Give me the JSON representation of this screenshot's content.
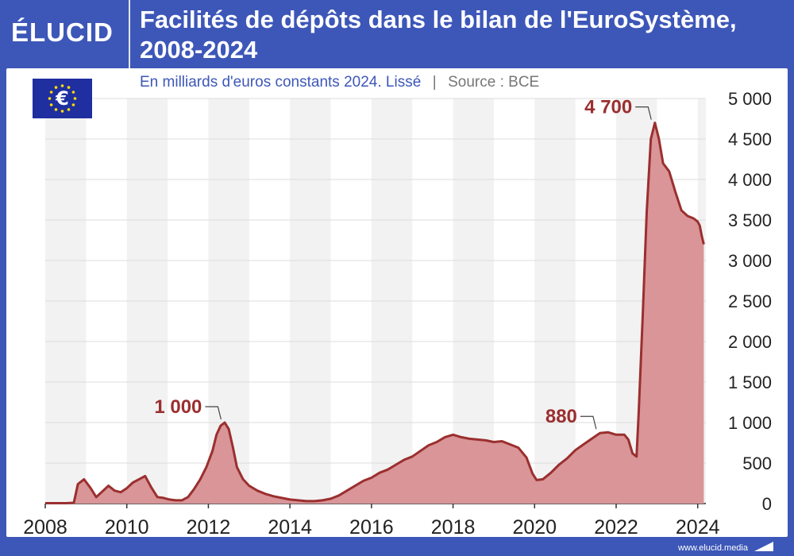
{
  "header": {
    "logo": "ÉLUCID",
    "title_line1": "Facilités de dépôts dans le bilan de l'EuroSystème,",
    "title_line2": "2008-2024"
  },
  "subtitle": {
    "unit": "En milliards d'euros constants 2024. Lissé",
    "separator": "|",
    "source": "Source : BCE"
  },
  "footer": {
    "url": "www.elucid.media"
  },
  "icons": {
    "flag": "eu-flag-euro-icon",
    "brand_mark": "elucid-mark-icon"
  },
  "colors": {
    "brand": "#3d57b8",
    "line": "#9b2f2f",
    "fill": "#d99597",
    "band": "#f2f2f2",
    "eu_blue": "#1f2fa0",
    "eu_gold": "#ffdd00"
  },
  "chart_data": {
    "type": "area",
    "title": "Facilités de dépôts dans le bilan de l'EuroSystème, 2008-2024",
    "subtitle": "En milliards d'euros constants 2024. Lissé",
    "source": "Source : BCE",
    "x_ticks": [
      "2008",
      "2010",
      "2012",
      "2014",
      "2016",
      "2018",
      "2020",
      "2022",
      "2024"
    ],
    "y_ticks": [
      "0",
      "500",
      "1 000",
      "1 500",
      "2 000",
      "2 500",
      "3 000",
      "3 500",
      "4 000",
      "4 500",
      "5 000"
    ],
    "xlim": [
      2008,
      2024.2
    ],
    "ylim": [
      0,
      5000
    ],
    "y_axis_side": "right",
    "grid": "horizontal",
    "alternating_year_bands": true,
    "series": [
      {
        "x": [
          2008.0,
          2008.5,
          2008.7,
          2008.8,
          2008.95,
          2009.1,
          2009.25,
          2009.4,
          2009.55,
          2009.7,
          2009.85,
          2010.0,
          2010.15,
          2010.3,
          2010.45,
          2010.6,
          2010.75,
          2010.9,
          2011.05,
          2011.2,
          2011.35,
          2011.5,
          2011.65,
          2011.8,
          2011.95,
          2012.1,
          2012.2,
          2012.3,
          2012.4,
          2012.5,
          2012.6,
          2012.7,
          2012.85,
          2013.0,
          2013.2,
          2013.4,
          2013.6,
          2013.8,
          2014.0,
          2014.2,
          2014.4,
          2014.6,
          2014.8,
          2015.0,
          2015.2,
          2015.4,
          2015.6,
          2015.8,
          2016.0,
          2016.2,
          2016.4,
          2016.6,
          2016.8,
          2017.0,
          2017.2,
          2017.4,
          2017.6,
          2017.8,
          2018.0,
          2018.2,
          2018.4,
          2018.6,
          2018.8,
          2019.0,
          2019.2,
          2019.4,
          2019.6,
          2019.8,
          2019.95,
          2020.05,
          2020.2,
          2020.4,
          2020.6,
          2020.8,
          2021.0,
          2021.2,
          2021.4,
          2021.6,
          2021.8,
          2022.0,
          2022.2,
          2022.3,
          2022.4,
          2022.5,
          2022.55,
          2022.65,
          2022.75,
          2022.85,
          2022.95,
          2023.05,
          2023.15,
          2023.3,
          2023.45,
          2023.6,
          2023.75,
          2023.9,
          2024.0,
          2024.05,
          2024.1,
          2024.15
        ],
        "y": [
          5,
          5,
          10,
          240,
          300,
          200,
          80,
          150,
          220,
          160,
          140,
          190,
          260,
          300,
          340,
          200,
          80,
          70,
          50,
          40,
          40,
          80,
          180,
          300,
          450,
          650,
          850,
          960,
          1000,
          920,
          700,
          450,
          300,
          220,
          160,
          120,
          90,
          70,
          50,
          40,
          30,
          30,
          40,
          60,
          100,
          160,
          220,
          280,
          320,
          380,
          420,
          480,
          540,
          580,
          650,
          720,
          760,
          820,
          850,
          820,
          800,
          790,
          780,
          760,
          770,
          730,
          690,
          570,
          370,
          290,
          300,
          380,
          480,
          560,
          660,
          730,
          800,
          870,
          880,
          850,
          850,
          790,
          620,
          580,
          1100,
          2300,
          3600,
          4500,
          4700,
          4500,
          4200,
          4100,
          3850,
          3620,
          3550,
          3520,
          3480,
          3430,
          3300,
          3200
        ]
      }
    ],
    "annotations": [
      {
        "x": 2012.35,
        "y": 1000,
        "label": "1 000"
      },
      {
        "x": 2021.55,
        "y": 880,
        "label": "880"
      },
      {
        "x": 2022.9,
        "y": 4700,
        "label": "4 700"
      }
    ]
  }
}
